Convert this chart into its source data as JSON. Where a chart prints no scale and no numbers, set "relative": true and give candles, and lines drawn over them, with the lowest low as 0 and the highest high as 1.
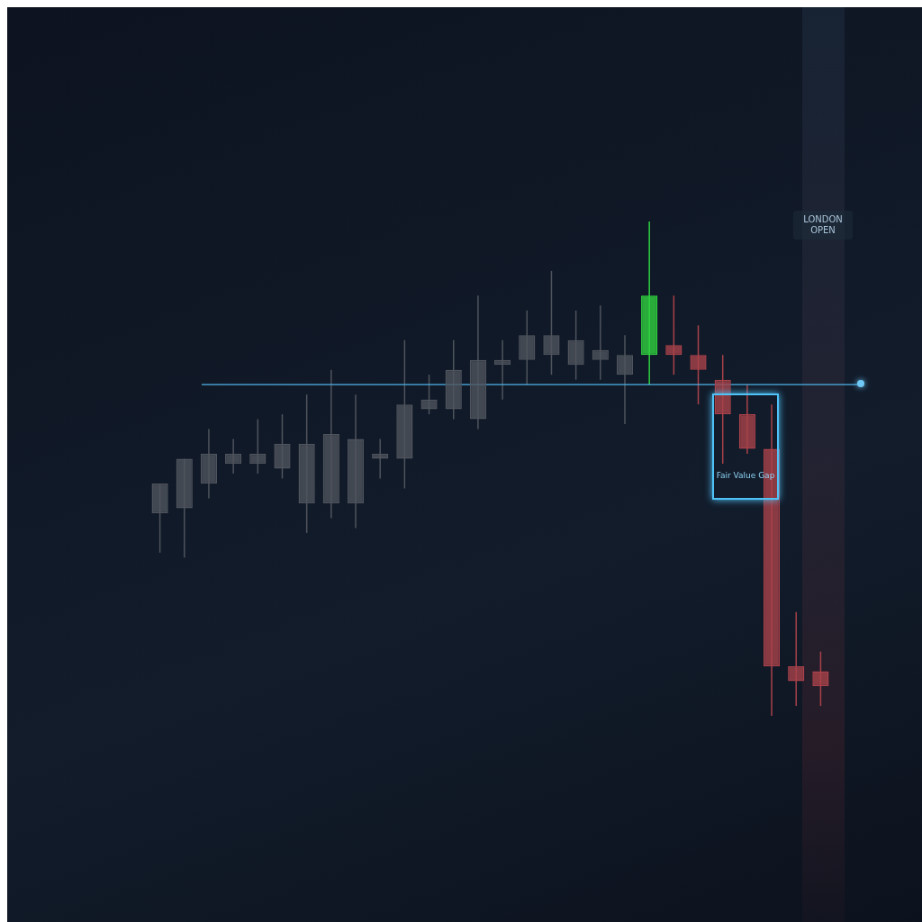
{
  "chart_data": {
    "type": "candlestick",
    "relative": true,
    "categories": [
      null,
      null,
      null,
      null,
      null,
      null,
      null,
      null,
      null,
      null,
      null,
      null,
      null,
      null,
      null,
      null,
      null,
      null,
      null,
      null,
      null,
      null,
      null,
      null,
      null,
      null,
      null,
      null
    ],
    "ohlc": [
      [
        0.41,
        0.47,
        0.33,
        0.47
      ],
      [
        0.42,
        0.52,
        0.32,
        0.52
      ],
      [
        0.47,
        0.58,
        0.44,
        0.53
      ],
      [
        0.51,
        0.56,
        0.49,
        0.53
      ],
      [
        0.51,
        0.6,
        0.49,
        0.53
      ],
      [
        0.5,
        0.61,
        0.48,
        0.55
      ],
      [
        0.43,
        0.65,
        0.37,
        0.55
      ],
      [
        0.43,
        0.7,
        0.4,
        0.57
      ],
      [
        0.43,
        0.65,
        0.38,
        0.56
      ],
      [
        0.52,
        0.56,
        0.48,
        0.53
      ],
      [
        0.52,
        0.76,
        0.46,
        0.63
      ],
      [
        0.62,
        0.69,
        0.61,
        0.64
      ],
      [
        0.62,
        0.76,
        0.6,
        0.7
      ],
      [
        0.6,
        0.85,
        0.58,
        0.72
      ],
      [
        0.71,
        0.76,
        0.64,
        0.72
      ],
      [
        0.72,
        0.82,
        0.67,
        0.77
      ],
      [
        0.73,
        0.9,
        0.69,
        0.77
      ],
      [
        0.71,
        0.82,
        0.68,
        0.76
      ],
      [
        0.72,
        0.83,
        0.68,
        0.74
      ],
      [
        0.69,
        0.77,
        0.59,
        0.73
      ],
      [
        0.73,
        1,
        0.67,
        0.85
      ],
      [
        0.75,
        0.85,
        0.69,
        0.73
      ],
      [
        0.73,
        0.79,
        0.63,
        0.7
      ],
      [
        0.68,
        0.73,
        0.51,
        0.61
      ],
      [
        0.61,
        0.67,
        0.53,
        0.54
      ],
      [
        0.54,
        0.63,
        0,
        0.1
      ],
      [
        0.1,
        0.21,
        0.02,
        0.07
      ],
      [
        0.09,
        0.13,
        0.02,
        0.06
      ]
    ],
    "colors": [
      "#4f545d",
      "#4f545d",
      "#4f545d",
      "#4f545d",
      "#4f545d",
      "#4f545d",
      "#4f545d",
      "#4f545d",
      "#4f545d",
      "#4f545d",
      "#4f545d",
      "#4f545d",
      "#4f545d",
      "#4f545d",
      "#4f545d",
      "#4f545d",
      "#4f545d",
      "#4f545d",
      "#4f545d",
      "#4f545d",
      "#2fd13f",
      "#a8424a",
      "#a8424a",
      "#a8424a",
      "#a8424a",
      "#a8424a",
      "#a8424a",
      "#a8424a"
    ],
    "ref_lines": [
      {
        "axis": "y",
        "value": 0.67,
        "color": "#4fb3e8"
      }
    ],
    "annotations": [
      "Fair Value Gap",
      "LONDON OPEN"
    ]
  }
}
